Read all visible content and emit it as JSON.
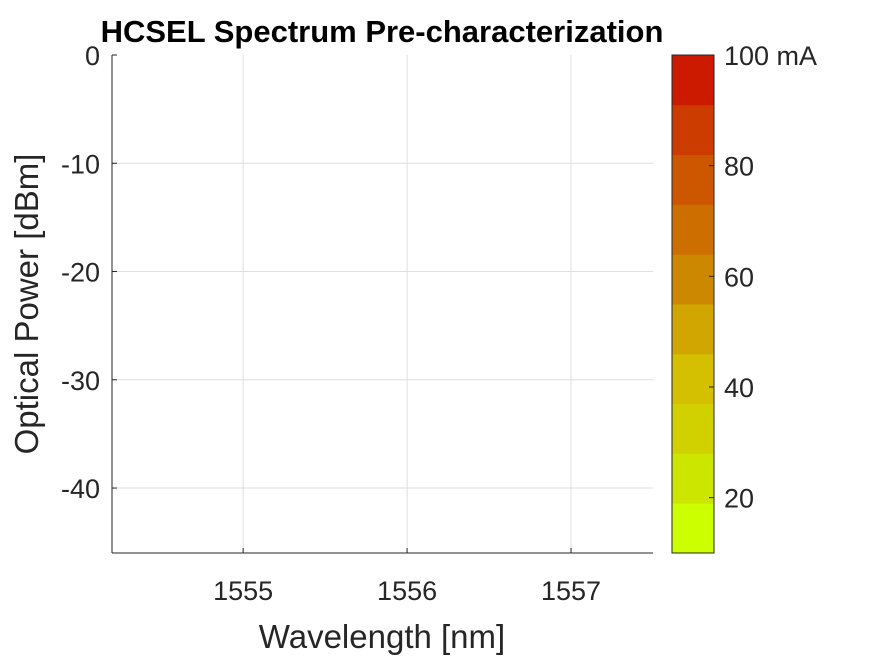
{
  "chart_data": {
    "type": "line",
    "title": "HCSEL Spectrum Pre-characterization",
    "xlabel": "Wavelength [nm]",
    "ylabel": "Optical Power [dBm]",
    "xlim": [
      1554.2,
      1557.5
    ],
    "ylim": [
      -46,
      0
    ],
    "xticks": [
      1555,
      1556,
      1557
    ],
    "yticks": [
      0,
      -10,
      -20,
      -30,
      -40
    ],
    "grid": true,
    "series": [],
    "colorbar": {
      "ticks": [
        {
          "value": 100,
          "label": "100 mA"
        },
        {
          "value": 80,
          "label": "80"
        },
        {
          "value": 60,
          "label": "60"
        },
        {
          "value": 40,
          "label": "40"
        },
        {
          "value": 20,
          "label": "20"
        }
      ],
      "range": [
        10,
        100
      ],
      "colors": [
        "#ccff00",
        "#cce600",
        "#d1d100",
        "#d4bf00",
        "#d1a600",
        "#cc8800",
        "#cc6f00",
        "#cc5700",
        "#cc3c00",
        "#cc1a00"
      ]
    }
  }
}
